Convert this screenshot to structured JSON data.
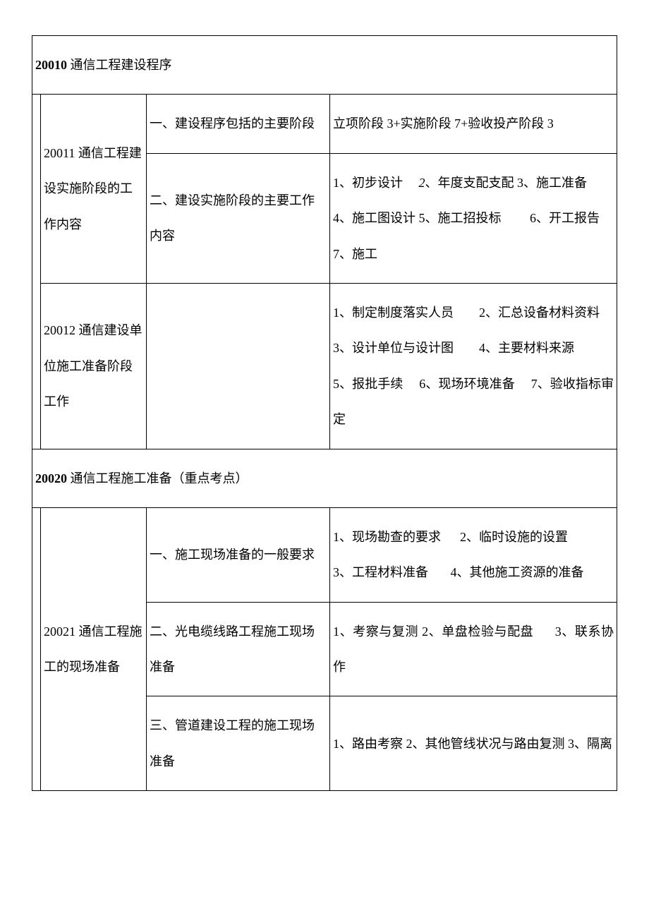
{
  "section1": {
    "header_code": "20010",
    "header_text": " 通信工程建设程序",
    "row1": {
      "col_a": "20011 通信工程建设实施阶段的工作内容",
      "sub1": {
        "col_b": "一、建设程序包括的主要阶段",
        "col_c": "立项阶段 3+实施阶段 7+验收投产阶段 3"
      },
      "sub2": {
        "col_b": "二、建设实施阶段的主要工作内容",
        "col_c_line1_a": "1、初步设计",
        "col_c_line1_b": "2",
        "col_c_line1_c": "、年度支配支配 3、施工准备",
        "col_c_line2": "4、施工图设计 5、施工招投标",
        "col_c_line2_b": "6、开工报告",
        "col_c_line3": "7、施工"
      }
    },
    "row2": {
      "col_a": "20012 通信建设单位施工准备阶段工作",
      "col_b": "",
      "col_c_line1_a": "1、制定制度落实人员",
      "col_c_line1_b": "2、汇总设备材料资料",
      "col_c_line2_a": "3、设计单位与设计图",
      "col_c_line2_b": "4、主要材料来源",
      "col_c_line3_a": "5、报批手续",
      "col_c_line3_b": "6、现场环境准备",
      "col_c_line3_c": "7、验收指标审定"
    }
  },
  "section2": {
    "header_code": "20020",
    "header_text": " 通信工程施工准备（重点考点）",
    "row1": {
      "col_a": "20021 通信工程施工的现场准备",
      "sub1": {
        "col_b": "一、施工现场准备的一般要求",
        "col_c_line1_a": "1、现场勘查的要求",
        "col_c_line1_b": "2、临时设施的设置",
        "col_c_line2_a": "3、工程材料准备",
        "col_c_line2_b": "4、其他施工资源的准备"
      },
      "sub2": {
        "col_b": "二、光电缆线路工程施工现场准备",
        "col_c_a": "1、考察与复测 2、单盘检验与配盘",
        "col_c_b": "3、联系协作"
      },
      "sub3": {
        "col_b": "三、管道建设工程的施工现场准备",
        "col_c": "1、路由考察 2、其他管线状况与路由复测 3、隔离"
      }
    }
  }
}
